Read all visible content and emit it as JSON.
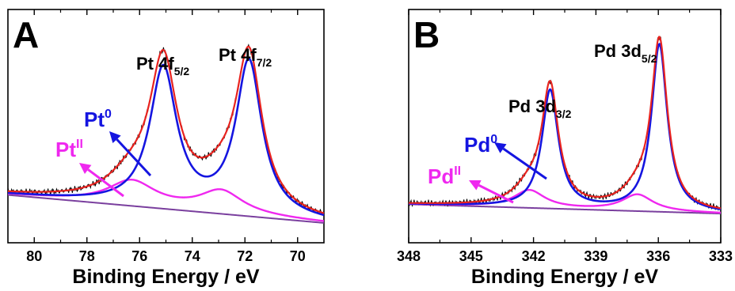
{
  "chart_data": [
    {
      "type": "line",
      "panel_label": "A",
      "xlabel": "Binding Energy / eV",
      "ylabel": "",
      "xlim": [
        81,
        69
      ],
      "ylim": [
        0,
        1
      ],
      "x_ticks": [
        80,
        78,
        76,
        74,
        72,
        70
      ],
      "grid": false,
      "colors": {
        "envelope": "#e8231f",
        "metal": "#1515e0",
        "oxide": "#ef28ef",
        "raw": "#000000",
        "background": "#7a3f9e"
      },
      "peak_labels": [
        {
          "main": "Pt 4f",
          "sub": "5/2",
          "x": 75.2,
          "y": 0.8
        },
        {
          "main": "Pt 4f",
          "sub": "7/2",
          "x": 71.8,
          "y": 0.81
        }
      ],
      "species_labels": [
        {
          "main": "Pt",
          "sup": "0",
          "color": "#1515e0",
          "series": "metal"
        },
        {
          "main": "Pt",
          "sup": "II",
          "color": "#ef28ef",
          "series": "oxide"
        }
      ],
      "series": [
        {
          "role": "metal",
          "peaks": [
            {
              "c": 75.1,
              "h": 0.595,
              "w": 0.62
            },
            {
              "c": 71.85,
              "h": 0.655,
              "w": 0.6
            }
          ]
        },
        {
          "role": "oxide",
          "peaks": [
            {
              "c": 76.3,
              "h": 0.105,
              "w": 1.1
            },
            {
              "c": 72.9,
              "h": 0.095,
              "w": 1.0
            }
          ]
        },
        {
          "role": "background",
          "from": [
            81,
            0.205
          ],
          "to": [
            69,
            0.085
          ]
        },
        {
          "role": "raw"
        },
        {
          "role": "envelope"
        }
      ]
    },
    {
      "type": "line",
      "panel_label": "B",
      "xlabel": "Binding Energy / eV",
      "ylabel": "",
      "xlim": [
        348,
        333
      ],
      "ylim": [
        0,
        1
      ],
      "x_ticks": [
        348,
        345,
        342,
        339,
        336,
        333
      ],
      "grid": false,
      "colors": {
        "envelope": "#e8231f",
        "metal": "#1515e0",
        "oxide": "#ef28ef",
        "raw": "#000000",
        "background": "#7a3f9e"
      },
      "peak_labels": [
        {
          "main": "Pd 3d",
          "sub": "3/2",
          "x": 341.2,
          "y": 0.72
        },
        {
          "main": "Pd 3d",
          "sub": "5/2",
          "x": 336,
          "y": 0.87
        }
      ],
      "species_labels": [
        {
          "main": "Pd",
          "sup": "0",
          "color": "#1515e0",
          "series": "metal"
        },
        {
          "main": "Pd",
          "sup": "II",
          "color": "#ef28ef",
          "series": "oxide"
        }
      ],
      "series": [
        {
          "role": "metal",
          "peaks": [
            {
              "c": 341.2,
              "h": 0.505,
              "w": 0.48
            },
            {
              "c": 335.95,
              "h": 0.715,
              "w": 0.46
            }
          ]
        },
        {
          "role": "oxide",
          "peaks": [
            {
              "c": 342.2,
              "h": 0.075,
              "w": 0.9
            },
            {
              "c": 337,
              "h": 0.07,
              "w": 0.9
            }
          ]
        },
        {
          "role": "background",
          "from": [
            348,
            0.165
          ],
          "to": [
            333,
            0.125
          ]
        },
        {
          "role": "raw"
        },
        {
          "role": "envelope"
        }
      ]
    }
  ]
}
